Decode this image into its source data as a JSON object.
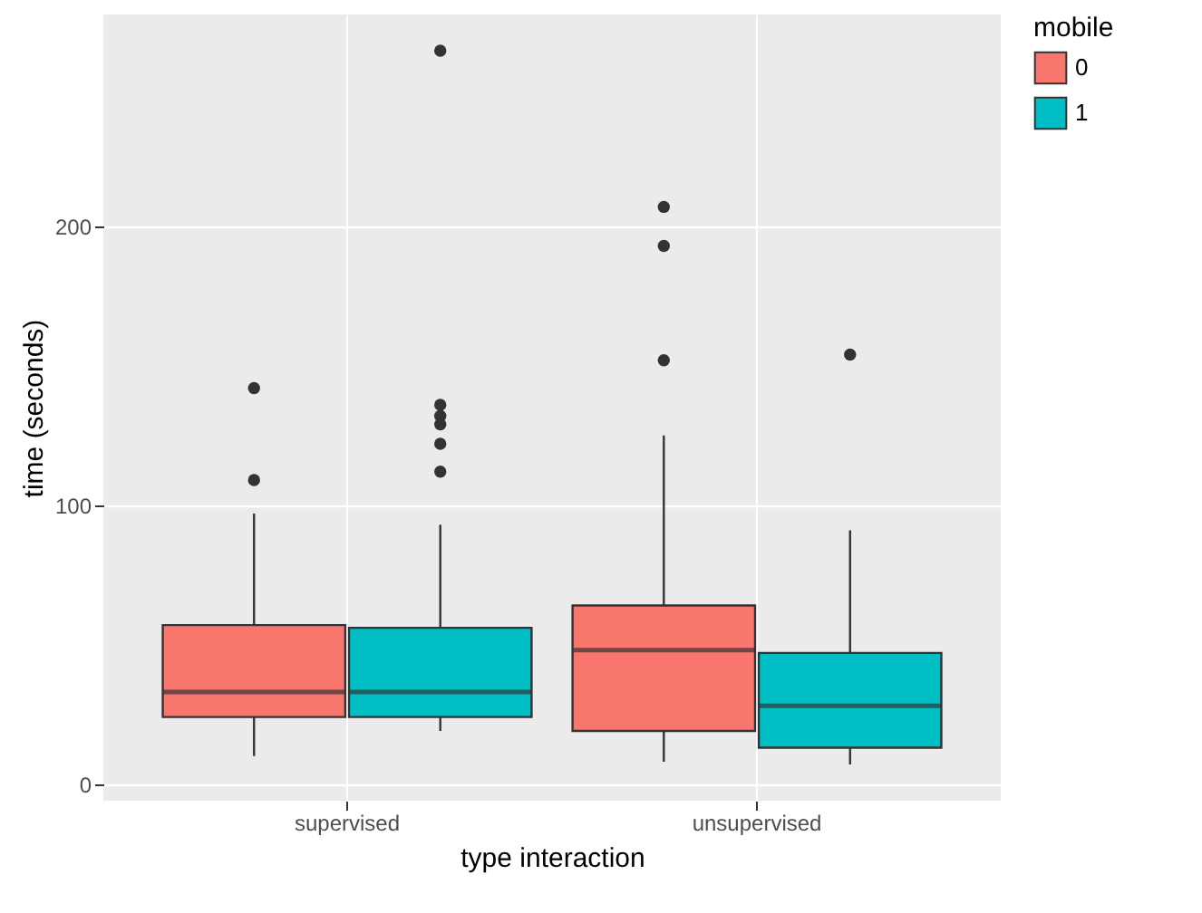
{
  "chart_data": {
    "type": "box",
    "xlabel": "type interaction",
    "ylabel": "time (seconds)",
    "legend_title": "mobile",
    "categories": [
      "supervised",
      "unsupervised"
    ],
    "series": [
      {
        "name": "0",
        "color": "#f8766d",
        "boxes": [
          {
            "low": 10,
            "q1": 24,
            "median": 33,
            "q3": 57,
            "high": 97,
            "outliers": [
              109,
              142
            ]
          },
          {
            "low": 8,
            "q1": 19,
            "median": 48,
            "q3": 64,
            "high": 125,
            "outliers": [
              152,
              193,
              207
            ]
          }
        ]
      },
      {
        "name": "1",
        "color": "#00bfc4",
        "boxes": [
          {
            "low": 19,
            "q1": 24,
            "median": 33,
            "q3": 56,
            "high": 93,
            "outliers": [
              112,
              122,
              129,
              132,
              136,
              263
            ]
          },
          {
            "low": 7,
            "q1": 13,
            "median": 28,
            "q3": 47,
            "high": 91,
            "outliers": [
              154
            ]
          }
        ]
      }
    ],
    "ylim": [
      -6,
      276
    ],
    "yticks": [
      0,
      100,
      200
    ],
    "grid": true,
    "legend": "right"
  }
}
